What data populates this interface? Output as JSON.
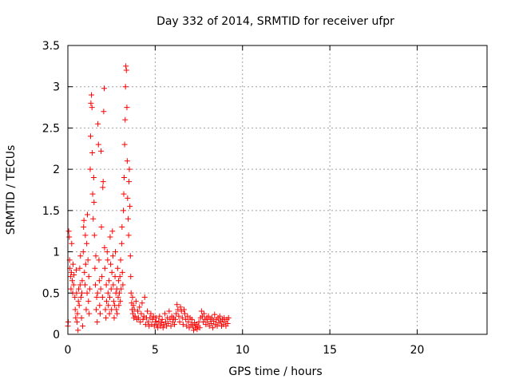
{
  "chart_data": {
    "type": "scatter",
    "title": "Day 332 of 2014, SRMTID for receiver ufpr",
    "xlabel": "GPS time / hours",
    "ylabel": "SRMTID / TECUs",
    "xlim": [
      0,
      24
    ],
    "ylim": [
      0,
      3.5
    ],
    "xticks": [
      0,
      5,
      10,
      15,
      20
    ],
    "xtick_labels": [
      "0",
      "5",
      "10",
      "15",
      "20"
    ],
    "yticks": [
      0,
      0.5,
      1,
      1.5,
      2,
      2.5,
      3,
      3.5
    ],
    "ytick_labels": [
      "0",
      "0.5",
      "1",
      "1.5",
      "2",
      "2.5",
      "3",
      "3.5"
    ],
    "grid": true,
    "marker": "+",
    "color": "#ff0000",
    "series": [
      {
        "name": "SRMTID",
        "points": [
          [
            0.0,
            0.1
          ],
          [
            0.02,
            0.15
          ],
          [
            0.05,
            1.25
          ],
          [
            0.08,
            1.18
          ],
          [
            0.1,
            0.9
          ],
          [
            0.12,
            0.8
          ],
          [
            0.15,
            0.7
          ],
          [
            0.18,
            0.55
          ],
          [
            0.2,
            0.75
          ],
          [
            0.22,
            1.1
          ],
          [
            0.25,
            0.65
          ],
          [
            0.28,
            0.5
          ],
          [
            0.3,
            0.85
          ],
          [
            0.33,
            0.6
          ],
          [
            0.35,
            0.72
          ],
          [
            0.4,
            0.45
          ],
          [
            0.42,
            0.3
          ],
          [
            0.45,
            0.2
          ],
          [
            0.48,
            0.78
          ],
          [
            0.5,
            0.5
          ],
          [
            0.52,
            0.15
          ],
          [
            0.55,
            0.25
          ],
          [
            0.58,
            0.05
          ],
          [
            0.6,
            0.4
          ],
          [
            0.62,
            0.55
          ],
          [
            0.65,
            0.35
          ],
          [
            0.68,
            0.8
          ],
          [
            0.7,
            0.6
          ],
          [
            0.72,
            0.95
          ],
          [
            0.75,
            0.45
          ],
          [
            0.78,
            0.2
          ],
          [
            0.8,
            0.5
          ],
          [
            0.82,
            0.65
          ],
          [
            0.85,
            0.1
          ],
          [
            0.88,
            1.0
          ],
          [
            0.9,
            1.3
          ],
          [
            0.92,
            1.38
          ],
          [
            0.95,
            0.75
          ],
          [
            0.98,
            0.6
          ],
          [
            1.0,
            1.2
          ],
          [
            1.02,
            0.85
          ],
          [
            1.05,
            0.3
          ],
          [
            1.08,
            1.1
          ],
          [
            1.1,
            0.5
          ],
          [
            1.12,
            1.45
          ],
          [
            1.15,
            0.9
          ],
          [
            1.18,
            0.4
          ],
          [
            1.2,
            0.7
          ],
          [
            1.22,
            0.25
          ],
          [
            1.25,
            0.55
          ],
          [
            1.28,
            2.0
          ],
          [
            1.3,
            2.4
          ],
          [
            1.32,
            2.8
          ],
          [
            1.35,
            2.9
          ],
          [
            1.38,
            2.75
          ],
          [
            1.4,
            2.2
          ],
          [
            1.42,
            1.7
          ],
          [
            1.45,
            1.4
          ],
          [
            1.48,
            1.9
          ],
          [
            1.5,
            1.6
          ],
          [
            1.52,
            1.2
          ],
          [
            1.55,
            0.8
          ],
          [
            1.58,
            0.6
          ],
          [
            1.6,
            0.95
          ],
          [
            1.62,
            0.3
          ],
          [
            1.65,
            0.45
          ],
          [
            1.68,
            0.15
          ],
          [
            1.7,
            0.5
          ],
          [
            1.72,
            2.55
          ],
          [
            1.75,
            2.3
          ],
          [
            1.78,
            0.9
          ],
          [
            1.8,
            0.65
          ],
          [
            1.82,
            0.35
          ],
          [
            1.85,
            0.25
          ],
          [
            1.88,
            0.55
          ],
          [
            1.9,
            2.22
          ],
          [
            1.92,
            1.3
          ],
          [
            1.95,
            0.7
          ],
          [
            1.98,
            0.45
          ],
          [
            2.0,
            1.78
          ],
          [
            2.02,
            1.85
          ],
          [
            2.05,
            2.7
          ],
          [
            2.08,
            2.98
          ],
          [
            2.1,
            1.05
          ],
          [
            2.12,
            0.8
          ],
          [
            2.15,
            0.3
          ],
          [
            2.18,
            0.2
          ],
          [
            2.2,
            0.6
          ],
          [
            2.22,
            0.4
          ],
          [
            2.25,
            1.0
          ],
          [
            2.28,
            0.9
          ],
          [
            2.3,
            0.5
          ],
          [
            2.32,
            0.35
          ],
          [
            2.35,
            0.65
          ],
          [
            2.38,
            0.25
          ],
          [
            2.4,
            0.45
          ],
          [
            2.42,
            1.18
          ],
          [
            2.45,
            0.85
          ],
          [
            2.48,
            0.55
          ],
          [
            2.5,
            0.3
          ],
          [
            2.52,
            0.75
          ],
          [
            2.55,
            1.25
          ],
          [
            2.58,
            0.95
          ],
          [
            2.6,
            0.6
          ],
          [
            2.62,
            0.4
          ],
          [
            2.65,
            0.2
          ],
          [
            2.68,
            0.35
          ],
          [
            2.7,
            0.7
          ],
          [
            2.72,
            1.0
          ],
          [
            2.75,
            0.5
          ],
          [
            2.78,
            0.3
          ],
          [
            2.8,
            0.55
          ],
          [
            2.82,
            0.25
          ],
          [
            2.85,
            0.8
          ],
          [
            2.88,
            0.45
          ],
          [
            2.9,
            0.65
          ],
          [
            2.92,
            0.35
          ],
          [
            2.95,
            0.5
          ],
          [
            2.98,
            0.7
          ],
          [
            3.0,
            0.4
          ],
          [
            3.02,
            0.9
          ],
          [
            3.05,
            0.55
          ],
          [
            3.08,
            1.1
          ],
          [
            3.1,
            1.3
          ],
          [
            3.12,
            0.75
          ],
          [
            3.15,
            0.6
          ],
          [
            3.18,
            1.5
          ],
          [
            3.2,
            1.7
          ],
          [
            3.22,
            1.9
          ],
          [
            3.25,
            2.3
          ],
          [
            3.28,
            2.6
          ],
          [
            3.3,
            3.0
          ],
          [
            3.32,
            3.25
          ],
          [
            3.35,
            3.2
          ],
          [
            3.38,
            2.75
          ],
          [
            3.4,
            2.1
          ],
          [
            3.42,
            1.65
          ],
          [
            3.45,
            1.4
          ],
          [
            3.48,
            1.2
          ],
          [
            3.5,
            1.85
          ],
          [
            3.52,
            2.0
          ],
          [
            3.55,
            1.55
          ],
          [
            3.58,
            0.95
          ],
          [
            3.6,
            0.7
          ],
          [
            3.62,
            0.5
          ],
          [
            3.65,
            0.38
          ],
          [
            3.68,
            0.3
          ],
          [
            3.7,
            0.45
          ],
          [
            3.72,
            0.25
          ],
          [
            3.75,
            0.35
          ],
          [
            3.78,
            0.2
          ],
          [
            3.8,
            0.3
          ],
          [
            3.85,
            0.22
          ],
          [
            3.9,
            0.4
          ],
          [
            3.95,
            0.18
          ],
          [
            4.0,
            0.28
          ],
          [
            4.05,
            0.2
          ],
          [
            4.1,
            0.33
          ],
          [
            4.15,
            0.15
          ],
          [
            4.2,
            0.25
          ],
          [
            4.25,
            0.38
          ],
          [
            4.3,
            0.18
          ],
          [
            4.35,
            0.22
          ],
          [
            4.4,
            0.45
          ],
          [
            4.45,
            0.12
          ],
          [
            4.5,
            0.2
          ],
          [
            4.55,
            0.28
          ],
          [
            4.6,
            0.15
          ],
          [
            4.65,
            0.1
          ],
          [
            4.7,
            0.2
          ],
          [
            4.75,
            0.25
          ],
          [
            4.8,
            0.12
          ],
          [
            4.85,
            0.18
          ],
          [
            4.9,
            0.22
          ],
          [
            4.95,
            0.1
          ],
          [
            5.0,
            0.15
          ],
          [
            5.05,
            0.2
          ],
          [
            5.1,
            0.12
          ],
          [
            5.15,
            0.08
          ],
          [
            5.2,
            0.16
          ],
          [
            5.25,
            0.22
          ],
          [
            5.3,
            0.1
          ],
          [
            5.35,
            0.14
          ],
          [
            5.4,
            0.18
          ],
          [
            5.45,
            0.08
          ],
          [
            5.5,
            0.12
          ],
          [
            5.55,
            0.25
          ],
          [
            5.6,
            0.15
          ],
          [
            5.65,
            0.1
          ],
          [
            5.7,
            0.2
          ],
          [
            5.75,
            0.13
          ],
          [
            5.8,
            0.28
          ],
          [
            5.85,
            0.18
          ],
          [
            5.9,
            0.1
          ],
          [
            5.95,
            0.22
          ],
          [
            6.0,
            0.15
          ],
          [
            6.05,
            0.2
          ],
          [
            6.1,
            0.12
          ],
          [
            6.15,
            0.18
          ],
          [
            6.2,
            0.25
          ],
          [
            6.25,
            0.36
          ],
          [
            6.3,
            0.3
          ],
          [
            6.35,
            0.22
          ],
          [
            6.4,
            0.15
          ],
          [
            6.45,
            0.33
          ],
          [
            6.5,
            0.28
          ],
          [
            6.55,
            0.2
          ],
          [
            6.6,
            0.12
          ],
          [
            6.65,
            0.3
          ],
          [
            6.7,
            0.25
          ],
          [
            6.75,
            0.18
          ],
          [
            6.8,
            0.1
          ],
          [
            6.85,
            0.22
          ],
          [
            6.9,
            0.15
          ],
          [
            6.95,
            0.08
          ],
          [
            7.0,
            0.2
          ],
          [
            7.05,
            0.12
          ],
          [
            7.1,
            0.18
          ],
          [
            7.15,
            0.1
          ],
          [
            7.2,
            0.05
          ],
          [
            7.25,
            0.14
          ],
          [
            7.3,
            0.08
          ],
          [
            7.35,
            0.12
          ],
          [
            7.4,
            0.06
          ],
          [
            7.45,
            0.1
          ],
          [
            7.5,
            0.15
          ],
          [
            7.55,
            0.08
          ],
          [
            7.6,
            0.2
          ],
          [
            7.65,
            0.28
          ],
          [
            7.7,
            0.22
          ],
          [
            7.75,
            0.15
          ],
          [
            7.8,
            0.25
          ],
          [
            7.85,
            0.18
          ],
          [
            7.9,
            0.12
          ],
          [
            7.95,
            0.2
          ],
          [
            8.0,
            0.15
          ],
          [
            8.05,
            0.22
          ],
          [
            8.1,
            0.1
          ],
          [
            8.15,
            0.18
          ],
          [
            8.2,
            0.13
          ],
          [
            8.25,
            0.2
          ],
          [
            8.3,
            0.08
          ],
          [
            8.35,
            0.16
          ],
          [
            8.4,
            0.24
          ],
          [
            8.45,
            0.12
          ],
          [
            8.5,
            0.18
          ],
          [
            8.55,
            0.1
          ],
          [
            8.6,
            0.2
          ],
          [
            8.65,
            0.14
          ],
          [
            8.7,
            0.22
          ],
          [
            8.75,
            0.16
          ],
          [
            8.8,
            0.1
          ],
          [
            8.85,
            0.18
          ],
          [
            8.9,
            0.12
          ],
          [
            8.95,
            0.2
          ],
          [
            9.0,
            0.15
          ],
          [
            9.05,
            0.1
          ],
          [
            9.1,
            0.18
          ],
          [
            9.15,
            0.13
          ],
          [
            9.2,
            0.2
          ]
        ]
      }
    ]
  }
}
